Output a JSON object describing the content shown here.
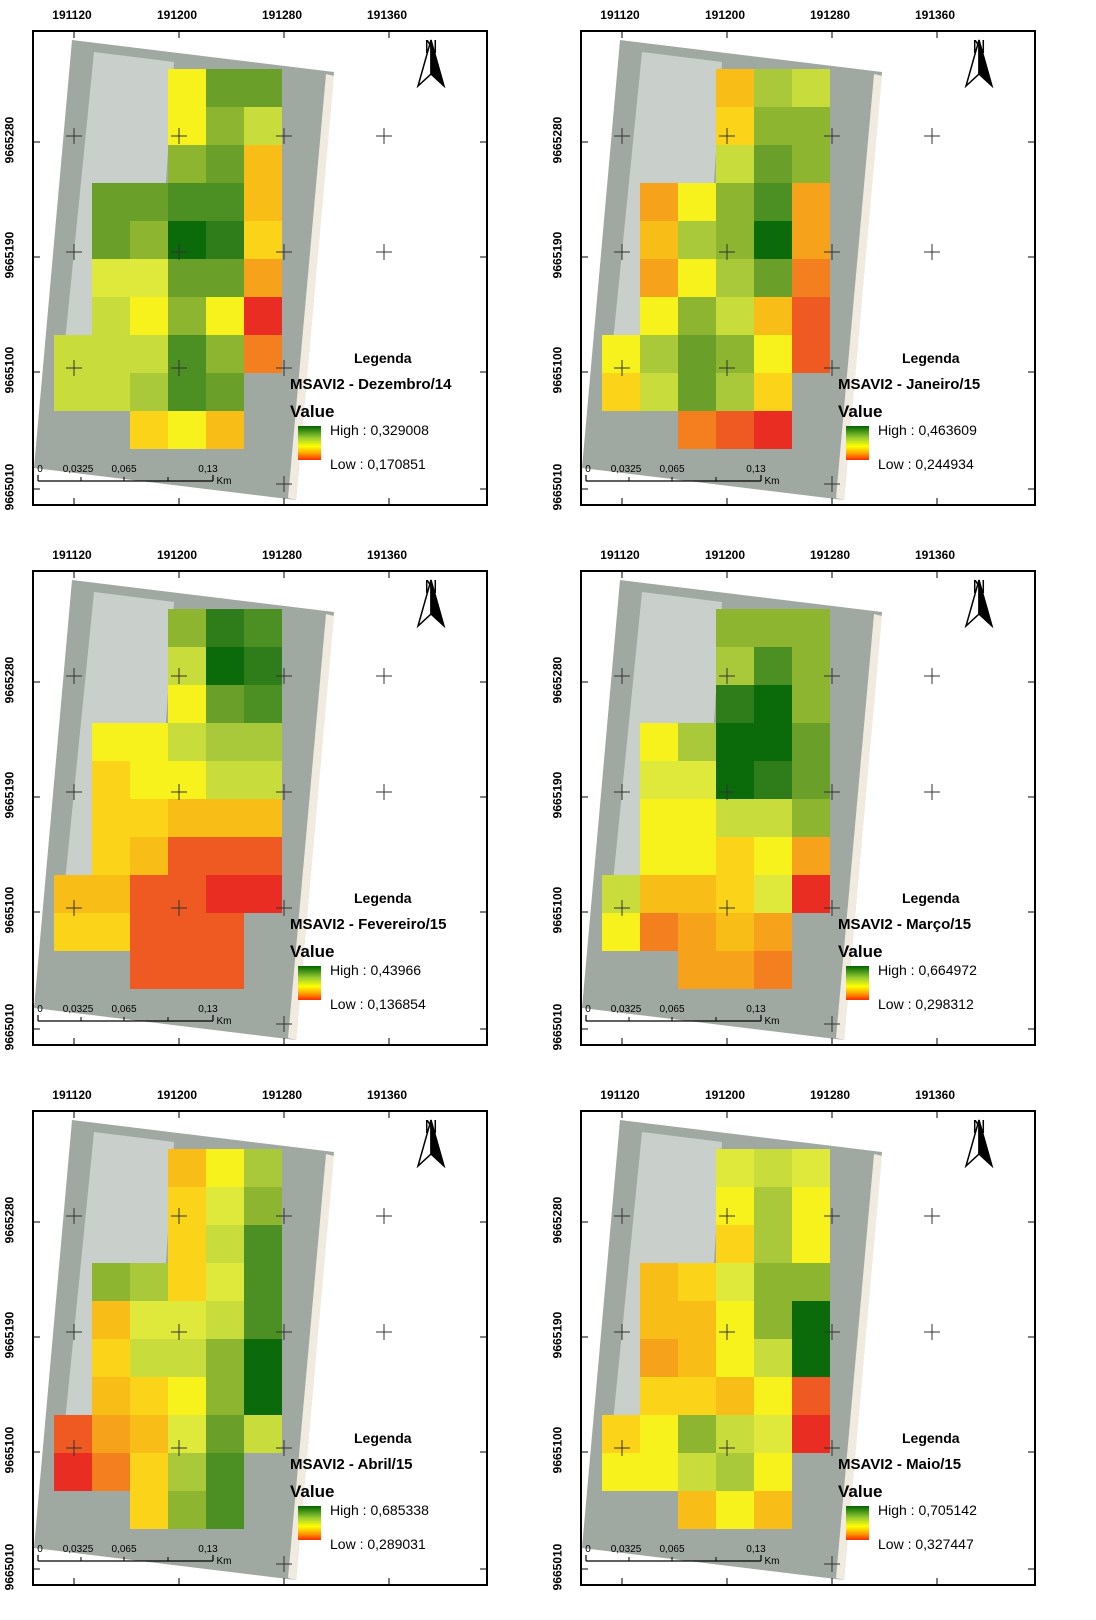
{
  "x_ticks": [
    "191120",
    "191200",
    "191280",
    "191360"
  ],
  "y_ticks": [
    "9665280",
    "9665190",
    "9665100",
    "9665010"
  ],
  "legend_heading": "Legenda",
  "value_label": "Value",
  "north_label": "N",
  "scale_labels": [
    "0",
    "0,0325",
    "0,065",
    "0,13"
  ],
  "scale_unit": "Km",
  "color_ramp": [
    "#006400",
    "#9acd32",
    "#ffff00",
    "#ffa500",
    "#ff2a00"
  ],
  "panels": [
    {
      "map_title": "MSAVI2 - Dezembro/14",
      "high": "High : 0,329008",
      "low": "Low : 0,170851"
    },
    {
      "map_title": "MSAVI2 - Janeiro/15",
      "high": "High : 0,463609",
      "low": "Low : 0,244934"
    },
    {
      "map_title": "MSAVI2 - Fevereiro/15",
      "high": "High : 0,43966",
      "low": "Low : 0,136854"
    },
    {
      "map_title": "MSAVI2 - Março/15",
      "high": "High : 0,664972",
      "low": "Low : 0,298312"
    },
    {
      "map_title": "MSAVI2 - Abril/15",
      "high": "High : 0,685338",
      "low": "Low : 0,289031"
    },
    {
      "map_title": "MSAVI2 - Maio/15",
      "high": "High : 0,705142",
      "low": "Low : 0,327447"
    }
  ]
}
